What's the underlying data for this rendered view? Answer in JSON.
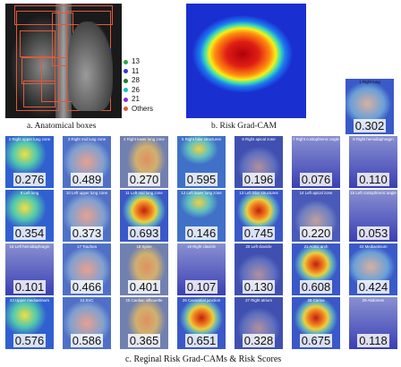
{
  "panel_a": {
    "caption": "a. Anatomical boxes",
    "legend": [
      {
        "label": "13",
        "color": "#2ea84a"
      },
      {
        "label": "11",
        "color": "#2b3bd8"
      },
      {
        "label": "28",
        "color": "#1f7a2a"
      },
      {
        "label": "26",
        "color": "#20b8c8"
      },
      {
        "label": "21",
        "color": "#8a2bd0"
      },
      {
        "label": "Others",
        "color": "#e05a3a"
      }
    ]
  },
  "panel_b": {
    "caption": "b. Risk Grad-CAM"
  },
  "panel_c": {
    "caption": "c. Reginal Risk Grad-CAMs & Risk Scores"
  },
  "tiles": [
    {
      "title": "1 Right lung",
      "score": "0.302"
    },
    {
      "title": "2 Right upper lung zone",
      "score": "0.276"
    },
    {
      "title": "3 Right mid lung zone",
      "score": "0.489"
    },
    {
      "title": "4 Right lower lung zone",
      "score": "0.270"
    },
    {
      "title": "5 Right hilar structures",
      "score": "0.595"
    },
    {
      "title": "6 Right apical zone",
      "score": "0.196"
    },
    {
      "title": "7 Right costophrenic angle",
      "score": "0.076"
    },
    {
      "title": "8 Right hemidiaphragm",
      "score": "0.110"
    },
    {
      "title": "9 Left lung",
      "score": "0.354"
    },
    {
      "title": "10 Left upper lung zone",
      "score": "0.373"
    },
    {
      "title": "11 Left mid lung zone",
      "score": "0.693"
    },
    {
      "title": "12 Left lower lung zone",
      "score": "0.146"
    },
    {
      "title": "13 Left hilar structures",
      "score": "0.745"
    },
    {
      "title": "14 Left apical zone",
      "score": "0.220"
    },
    {
      "title": "15 Left costophrenic angle",
      "score": "0.053"
    },
    {
      "title": "16 Left hemidiaphragm",
      "score": "0.101"
    },
    {
      "title": "17 Trachea",
      "score": "0.466"
    },
    {
      "title": "18 Spine",
      "score": "0.401"
    },
    {
      "title": "19 Right clavicle",
      "score": "0.107"
    },
    {
      "title": "20 Left clavicle",
      "score": "0.130"
    },
    {
      "title": "21 Aortic arch",
      "score": "0.608"
    },
    {
      "title": "22 Mediastinum",
      "score": "0.424"
    },
    {
      "title": "23 Upper mediastinum",
      "score": "0.576"
    },
    {
      "title": "24 SVC",
      "score": "0.586"
    },
    {
      "title": "25 Cardiac silhouette",
      "score": "0.365"
    },
    {
      "title": "26 Cavoatrial junction",
      "score": "0.651"
    },
    {
      "title": "27 Right atrium",
      "score": "0.328"
    },
    {
      "title": "28 Carina",
      "score": "0.675"
    },
    {
      "title": "29 Abdomen",
      "score": "0.118"
    }
  ]
}
